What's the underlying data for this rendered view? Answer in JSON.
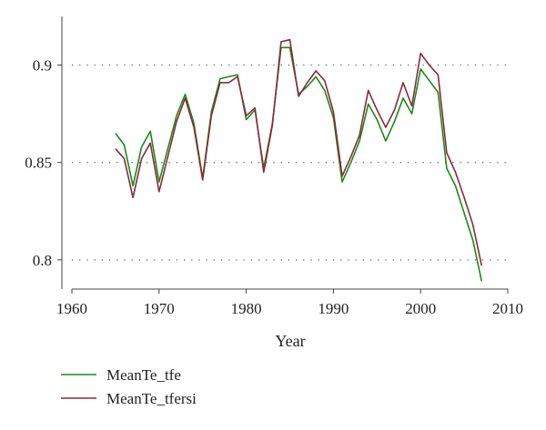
{
  "chart_data": {
    "type": "line",
    "title": "",
    "xlabel": "Year",
    "ylabel": "",
    "xlim": [
      1960,
      2010
    ],
    "ylim": [
      0.785,
      0.925
    ],
    "xticks": [
      1960,
      1970,
      1980,
      1990,
      2000,
      2010
    ],
    "yticks": [
      0.8,
      0.85,
      0.9
    ],
    "ytick_labels": [
      "0.8",
      "0.85",
      "0.9"
    ],
    "grid": "horizontal dotted",
    "legend_placement": "bottom-left",
    "x": [
      1965,
      1966,
      1967,
      1968,
      1969,
      1970,
      1971,
      1972,
      1973,
      1974,
      1975,
      1976,
      1977,
      1978,
      1979,
      1980,
      1981,
      1982,
      1983,
      1984,
      1985,
      1986,
      1987,
      1988,
      1989,
      1990,
      1991,
      1992,
      1993,
      1994,
      1995,
      1996,
      1997,
      1998,
      1999,
      2000,
      2001,
      2002,
      2003,
      2004,
      2005,
      2006,
      2007
    ],
    "series": [
      {
        "name": "MeanTe_tfe",
        "color": "#1a8a1a",
        "values": [
          0.865,
          0.859,
          0.838,
          0.858,
          0.866,
          0.84,
          0.857,
          0.874,
          0.885,
          0.87,
          0.842,
          0.876,
          0.893,
          0.894,
          0.895,
          0.872,
          0.877,
          0.847,
          0.87,
          0.909,
          0.909,
          0.885,
          0.889,
          0.894,
          0.887,
          0.873,
          0.84,
          0.85,
          0.861,
          0.88,
          0.872,
          0.861,
          0.871,
          0.883,
          0.875,
          0.898,
          0.892,
          0.886,
          0.847,
          0.838,
          0.824,
          0.81,
          0.789
        ]
      },
      {
        "name": "MeanTe_tfersi",
        "color": "#8b2a3c",
        "values": [
          0.857,
          0.852,
          0.832,
          0.852,
          0.86,
          0.835,
          0.853,
          0.871,
          0.883,
          0.868,
          0.841,
          0.874,
          0.891,
          0.891,
          0.894,
          0.874,
          0.878,
          0.845,
          0.869,
          0.912,
          0.913,
          0.884,
          0.891,
          0.897,
          0.892,
          0.876,
          0.843,
          0.853,
          0.864,
          0.887,
          0.877,
          0.868,
          0.877,
          0.891,
          0.879,
          0.906,
          0.9,
          0.895,
          0.855,
          0.845,
          0.832,
          0.818,
          0.797
        ]
      }
    ]
  }
}
